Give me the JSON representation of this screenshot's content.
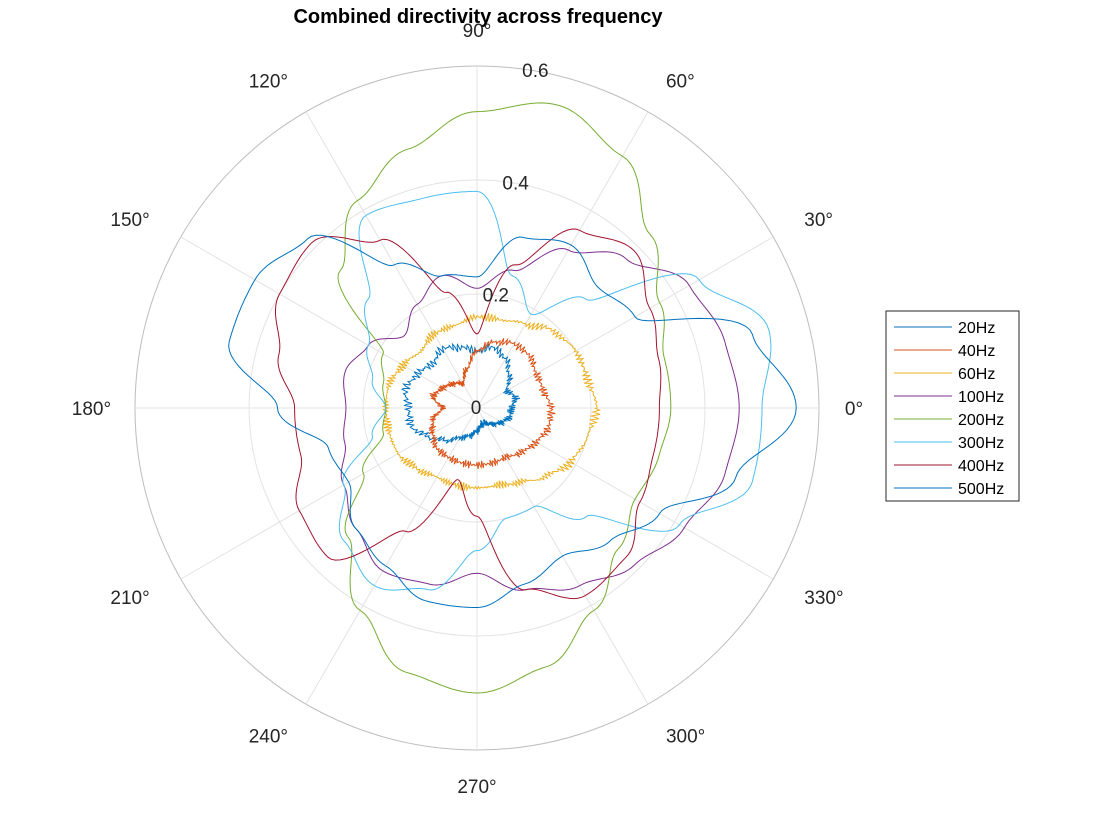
{
  "chart_data": {
    "type": "polar-line",
    "title": "Combined directivity across frequency",
    "theta_unit": "degrees",
    "theta_ticks": [
      0,
      30,
      60,
      90,
      120,
      150,
      180,
      210,
      240,
      270,
      300,
      330
    ],
    "theta_tick_labels": [
      "0°",
      "30°",
      "60°",
      "90°",
      "120°",
      "150°",
      "180°",
      "210°",
      "240°",
      "270°",
      "300°",
      "330°"
    ],
    "r_ticks": [
      0,
      0.2,
      0.4,
      0.6
    ],
    "r_tick_labels": [
      "0",
      "0.2",
      "0.4",
      "0.6"
    ],
    "rlim": [
      0,
      0.6
    ],
    "grid": true,
    "legend_position": "right",
    "angles": [
      0,
      15,
      30,
      45,
      60,
      75,
      90,
      105,
      120,
      135,
      150,
      165,
      180,
      195,
      210,
      225,
      240,
      255,
      270,
      285,
      300,
      315,
      330,
      345
    ],
    "series": [
      {
        "name": "20Hz",
        "color": "#0072BD",
        "r": [
          0.06,
          0.07,
          0.06,
          0.08,
          0.1,
          0.11,
          0.1,
          0.11,
          0.12,
          0.11,
          0.12,
          0.13,
          0.12,
          0.12,
          0.1,
          0.08,
          0.06,
          0.05,
          0.04,
          0.03,
          0.03,
          0.04,
          0.05,
          0.06
        ]
      },
      {
        "name": "40Hz",
        "color": "#D95319",
        "r": [
          0.13,
          0.12,
          0.12,
          0.13,
          0.13,
          0.12,
          0.1,
          0.07,
          0.05,
          0.06,
          0.07,
          0.08,
          0.06,
          0.08,
          0.09,
          0.1,
          0.1,
          0.1,
          0.1,
          0.1,
          0.1,
          0.11,
          0.12,
          0.13
        ]
      },
      {
        "name": "60Hz",
        "color": "#EDB120",
        "r": [
          0.21,
          0.2,
          0.2,
          0.19,
          0.17,
          0.16,
          0.16,
          0.15,
          0.15,
          0.14,
          0.15,
          0.16,
          0.16,
          0.16,
          0.16,
          0.15,
          0.14,
          0.14,
          0.14,
          0.14,
          0.15,
          0.17,
          0.19,
          0.2
        ]
      },
      {
        "name": "100Hz",
        "color": "#7E2F8E",
        "r": [
          0.46,
          0.45,
          0.43,
          0.37,
          0.32,
          0.25,
          0.21,
          0.24,
          0.21,
          0.18,
          0.22,
          0.24,
          0.23,
          0.24,
          0.27,
          0.3,
          0.33,
          0.32,
          0.29,
          0.33,
          0.36,
          0.39,
          0.42,
          0.45
        ]
      },
      {
        "name": "200Hz",
        "color": "#77AC30",
        "r": [
          0.34,
          0.34,
          0.37,
          0.43,
          0.51,
          0.55,
          0.52,
          0.47,
          0.42,
          0.34,
          0.19,
          0.17,
          0.16,
          0.17,
          0.23,
          0.32,
          0.41,
          0.48,
          0.5,
          0.47,
          0.41,
          0.35,
          0.32,
          0.33
        ]
      },
      {
        "name": "300Hz",
        "color": "#4DBEEE",
        "r": [
          0.5,
          0.53,
          0.45,
          0.27,
          0.19,
          0.24,
          0.38,
          0.38,
          0.39,
          0.27,
          0.22,
          0.19,
          0.16,
          0.19,
          0.27,
          0.33,
          0.36,
          0.33,
          0.25,
          0.2,
          0.2,
          0.27,
          0.41,
          0.5
        ]
      },
      {
        "name": "400Hz",
        "color": "#A2142F",
        "r": [
          0.32,
          0.33,
          0.35,
          0.39,
          0.36,
          0.26,
          0.13,
          0.21,
          0.34,
          0.41,
          0.4,
          0.36,
          0.32,
          0.32,
          0.36,
          0.37,
          0.25,
          0.13,
          0.19,
          0.33,
          0.38,
          0.37,
          0.33,
          0.32
        ]
      },
      {
        "name": "500Hz",
        "color": "#0072BD",
        "r": [
          0.56,
          0.5,
          0.32,
          0.3,
          0.33,
          0.31,
          0.23,
          0.24,
          0.29,
          0.42,
          0.45,
          0.45,
          0.35,
          0.27,
          0.26,
          0.3,
          0.32,
          0.35,
          0.35,
          0.32,
          0.3,
          0.33,
          0.37,
          0.47
        ]
      }
    ]
  }
}
